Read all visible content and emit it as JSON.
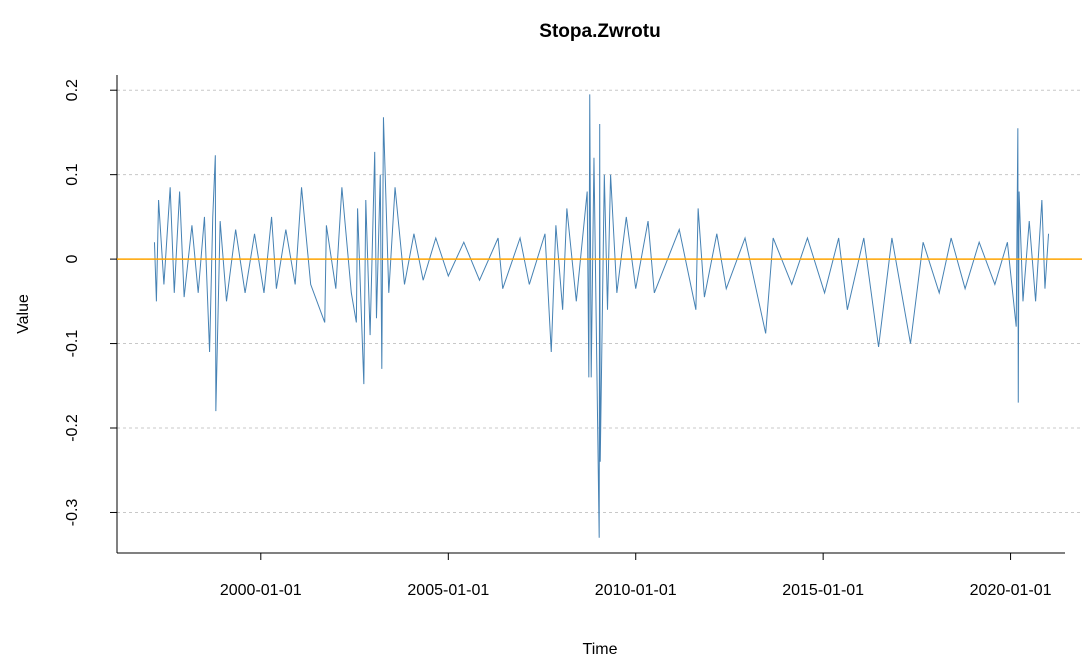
{
  "chart_data": {
    "type": "line",
    "title": "Stopa.Zwrotu",
    "x_label": "Time",
    "y_label": "Value",
    "x": [
      "1997-03-01",
      "1997-03-20",
      "1997-04-10",
      "1997-06-01",
      "1997-08-01",
      "1997-09-10",
      "1997-11-01",
      "1997-12-15",
      "1998-03-01",
      "1998-05-01",
      "1998-07-01",
      "1998-08-20",
      "1998-09-20",
      "1998-10-15",
      "1998-10-20",
      "1998-12-01",
      "1999-02-01",
      "1999-05-01",
      "1999-08-01",
      "1999-11-01",
      "2000-02-01",
      "2000-04-15",
      "2000-06-01",
      "2000-09-01",
      "2000-12-01",
      "2001-02-01",
      "2001-05-01",
      "2001-09-15",
      "2001-10-01",
      "2002-01-01",
      "2002-03-01",
      "2002-06-01",
      "2002-07-20",
      "2002-08-01",
      "2002-10-01",
      "2002-10-20",
      "2002-12-01",
      "2003-01-15",
      "2003-02-01",
      "2003-03-10",
      "2003-03-25",
      "2003-04-10",
      "2003-06-01",
      "2003-08-01",
      "2003-11-01",
      "2004-02-01",
      "2004-05-01",
      "2004-09-01",
      "2005-01-01",
      "2005-06-01",
      "2005-11-01",
      "2006-05-01",
      "2006-06-15",
      "2006-12-01",
      "2007-03-01",
      "2007-08-01",
      "2007-10-01",
      "2007-11-15",
      "2008-01-20",
      "2008-03-01",
      "2008-06-01",
      "2008-09-15",
      "2008-10-01",
      "2008-10-10",
      "2008-10-24",
      "2008-11-20",
      "2009-01-10",
      "2009-01-15",
      "2009-01-20",
      "2009-03-01",
      "2009-04-01",
      "2009-05-01",
      "2009-07-01",
      "2009-10-01",
      "2010-01-01",
      "2010-05-01",
      "2010-07-01",
      "2011-03-01",
      "2011-08-10",
      "2011-09-01",
      "2011-11-01",
      "2012-03-01",
      "2012-06-01",
      "2012-12-01",
      "2013-06-20",
      "2013-09-01",
      "2014-03-01",
      "2014-08-01",
      "2015-01-15",
      "2015-06-01",
      "2015-08-25",
      "2016-02-01",
      "2016-06-24",
      "2016-11-01",
      "2017-05-01",
      "2017-09-01",
      "2018-02-05",
      "2018-06-01",
      "2018-10-15",
      "2019-03-01",
      "2019-08-01",
      "2019-12-01",
      "2020-02-25",
      "2020-03-12",
      "2020-03-16",
      "2020-03-24",
      "2020-05-01",
      "2020-07-01",
      "2020-09-01",
      "2020-11-01",
      "2020-12-01",
      "2021-01-05"
    ],
    "series": [
      {
        "color": "#4682b4",
        "values": [
          0.02,
          -0.05,
          0.07,
          -0.03,
          0.085,
          -0.04,
          0.08,
          -0.045,
          0.04,
          -0.04,
          0.05,
          -0.11,
          0.05,
          0.123,
          -0.18,
          0.045,
          -0.05,
          0.035,
          -0.04,
          0.03,
          -0.04,
          0.05,
          -0.035,
          0.035,
          -0.03,
          0.085,
          -0.03,
          -0.075,
          0.04,
          -0.035,
          0.085,
          -0.04,
          -0.075,
          0.06,
          -0.148,
          0.07,
          -0.09,
          0.127,
          -0.07,
          0.1,
          -0.13,
          0.168,
          -0.04,
          0.085,
          -0.03,
          0.03,
          -0.025,
          0.025,
          -0.02,
          0.02,
          -0.025,
          0.025,
          -0.035,
          0.025,
          -0.03,
          0.03,
          -0.11,
          0.04,
          -0.06,
          0.06,
          -0.05,
          0.08,
          -0.14,
          0.195,
          -0.14,
          0.12,
          -0.33,
          0.16,
          -0.24,
          0.1,
          -0.06,
          0.1,
          -0.04,
          0.05,
          -0.035,
          0.045,
          -0.04,
          0.035,
          -0.06,
          0.06,
          -0.045,
          0.03,
          -0.035,
          0.025,
          -0.088,
          0.025,
          -0.03,
          0.025,
          -0.04,
          0.025,
          -0.06,
          0.025,
          -0.104,
          0.025,
          -0.1,
          0.02,
          -0.04,
          0.025,
          -0.035,
          0.02,
          -0.03,
          0.02,
          -0.08,
          0.155,
          -0.17,
          0.08,
          -0.05,
          0.045,
          -0.05,
          0.07,
          -0.035,
          0.03
        ]
      }
    ],
    "reference_line": {
      "value": 0,
      "color": "#ffa500"
    },
    "xlim": [
      "1996-03-01",
      "2021-11-27"
    ],
    "xticks": [
      "2000-01-01",
      "2005-01-01",
      "2010-01-01",
      "2015-01-01",
      "2020-01-01"
    ],
    "ylim": [
      -0.348,
      0.218
    ],
    "yticks": [
      -0.3,
      -0.2,
      -0.1,
      0.0,
      0.1,
      0.2
    ],
    "grid": true
  }
}
